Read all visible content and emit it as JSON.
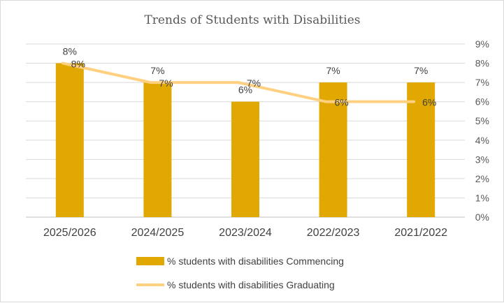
{
  "chart_data": {
    "type": "bar",
    "title": "Trends of Students with Disabilities",
    "categories": [
      "2025/2026",
      "2024/2025",
      "2023/2024",
      "2022/2023",
      "2021/2022"
    ],
    "series": [
      {
        "name": "% students with disabilities Commencing",
        "type": "bar",
        "values": [
          8,
          7,
          6,
          7,
          7
        ],
        "labels": [
          "8%",
          "7%",
          "6%",
          "7%",
          "7%"
        ],
        "color": "#E0A800"
      },
      {
        "name": "% students with disabilities Graduating",
        "type": "line",
        "values": [
          8,
          7,
          7,
          6,
          6
        ],
        "labels": [
          "8%",
          "7%",
          "7%",
          "6%",
          "6%"
        ],
        "color": "#FFD080"
      }
    ],
    "y_axis": {
      "position": "right",
      "ylim": [
        0,
        9
      ],
      "ticks": [
        "0%",
        "1%",
        "2%",
        "3%",
        "4%",
        "5%",
        "6%",
        "7%",
        "8%",
        "9%"
      ]
    },
    "grid": true,
    "legend_position": "bottom"
  }
}
